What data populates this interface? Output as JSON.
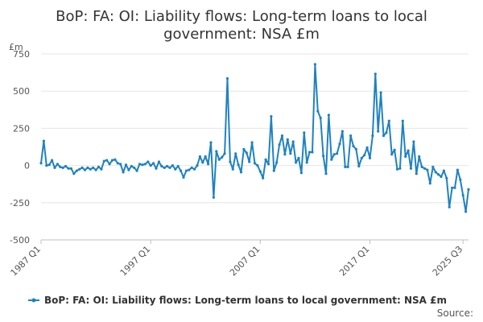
{
  "colors": {
    "series": "#1f82c0",
    "grid": "#e6e6e6",
    "axis": "#bfbfbf",
    "text": "#333333"
  },
  "legend": {
    "position": "bottom"
  },
  "source_label": "Source:",
  "chart_data": {
    "type": "line",
    "title_lines": [
      "BoP: FA: OI: Liability flows: Long-term loans to local",
      "government: NSA £m"
    ],
    "unit_label": "£m",
    "ylim": [
      -500,
      750
    ],
    "y_ticks": [
      750,
      500,
      250,
      0,
      -250,
      -500
    ],
    "y_tick_labels": [
      "750",
      "500",
      "250",
      "0",
      "-250",
      "-500"
    ],
    "grid": true,
    "x_start": {
      "year": 1987,
      "quarter": 1
    },
    "x_tick_labels": [
      "1987 Q1",
      "1997 Q1",
      "2007 Q1",
      "2017 Q1",
      "2025 Q3"
    ],
    "series": [
      {
        "name": "BoP: FA: OI: Liability flows: Long-term loans to local government: NSA £m",
        "values": [
          15,
          165,
          0,
          5,
          35,
          -15,
          10,
          -10,
          -15,
          -5,
          -20,
          -20,
          -55,
          -35,
          -25,
          -15,
          -30,
          -15,
          -25,
          -15,
          -30,
          -10,
          -25,
          30,
          35,
          10,
          35,
          40,
          15,
          10,
          -45,
          5,
          -30,
          -5,
          -15,
          -35,
          10,
          5,
          10,
          25,
          0,
          15,
          -20,
          25,
          -5,
          -15,
          -5,
          -15,
          0,
          -25,
          -5,
          -35,
          -80,
          -35,
          -30,
          -15,
          -25,
          0,
          60,
          20,
          60,
          10,
          155,
          -215,
          95,
          40,
          55,
          80,
          585,
          25,
          -25,
          80,
          5,
          -45,
          110,
          85,
          25,
          155,
          15,
          0,
          -40,
          -85,
          40,
          10,
          330,
          -35,
          20,
          140,
          200,
          75,
          175,
          80,
          160,
          20,
          50,
          -50,
          220,
          20,
          90,
          90,
          680,
          365,
          320,
          65,
          -55,
          340,
          40,
          75,
          80,
          145,
          230,
          -10,
          -10,
          200,
          130,
          110,
          -5,
          50,
          70,
          120,
          50,
          200,
          615,
          230,
          490,
          200,
          220,
          300,
          75,
          105,
          -25,
          -20,
          300,
          60,
          100,
          -20,
          160,
          -55,
          60,
          -10,
          -20,
          -30,
          -120,
          -10,
          -45,
          -60,
          -75,
          -35,
          -85,
          -280,
          -150,
          -150,
          -30,
          -95,
          -200,
          -310,
          -160
        ]
      }
    ]
  }
}
